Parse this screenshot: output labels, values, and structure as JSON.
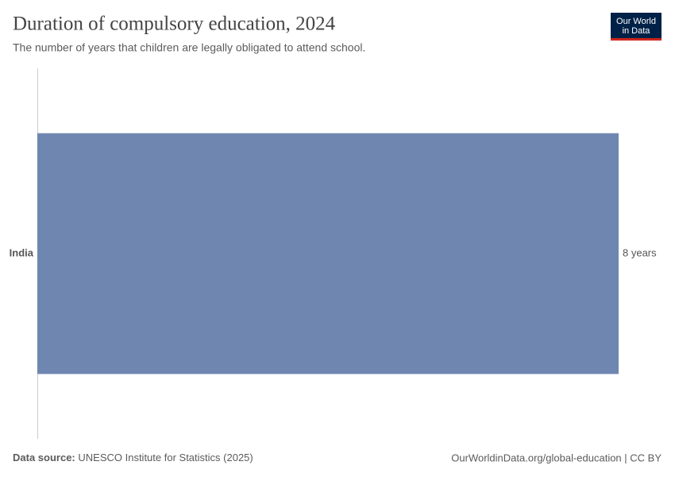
{
  "chart_data": {
    "type": "bar",
    "orientation": "horizontal",
    "title": "Duration of compulsory education, 2024",
    "subtitle": "The number of years that children are legally obligated to attend school.",
    "categories": [
      "India"
    ],
    "values": [
      8
    ],
    "value_labels": [
      "8 years"
    ],
    "color": "#6f87b0",
    "xlim": [
      0,
      8
    ]
  },
  "footer": {
    "source_label": "Data source:",
    "source": "UNESCO Institute for Statistics (2025)",
    "url": "OurWorldinData.org/global-education | CC BY"
  },
  "logo": {
    "line1": "Our World",
    "line2": "in Data"
  }
}
